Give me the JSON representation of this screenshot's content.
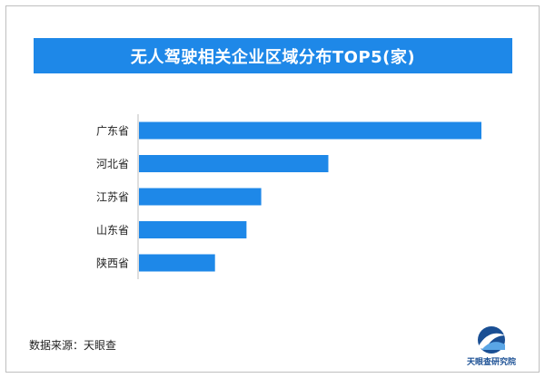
{
  "title": "无人驾驶相关企业区域分布TOP5(家)",
  "source": "数据来源：天眼查",
  "logo_text": "天眼查研究院",
  "colors": {
    "bar": "#1e88e8",
    "title_bg": "#1e88e8",
    "axis": "#bdbdbd",
    "logo": "#1a4f94"
  },
  "chart_data": {
    "type": "bar",
    "orientation": "horizontal",
    "categories": [
      "广东省",
      "河北省",
      "江苏省",
      "山东省",
      "陕西省"
    ],
    "values": [
      1000,
      553,
      357,
      314,
      222
    ],
    "xlim": [
      0,
      1000
    ],
    "grid": false,
    "legend": "none"
  }
}
